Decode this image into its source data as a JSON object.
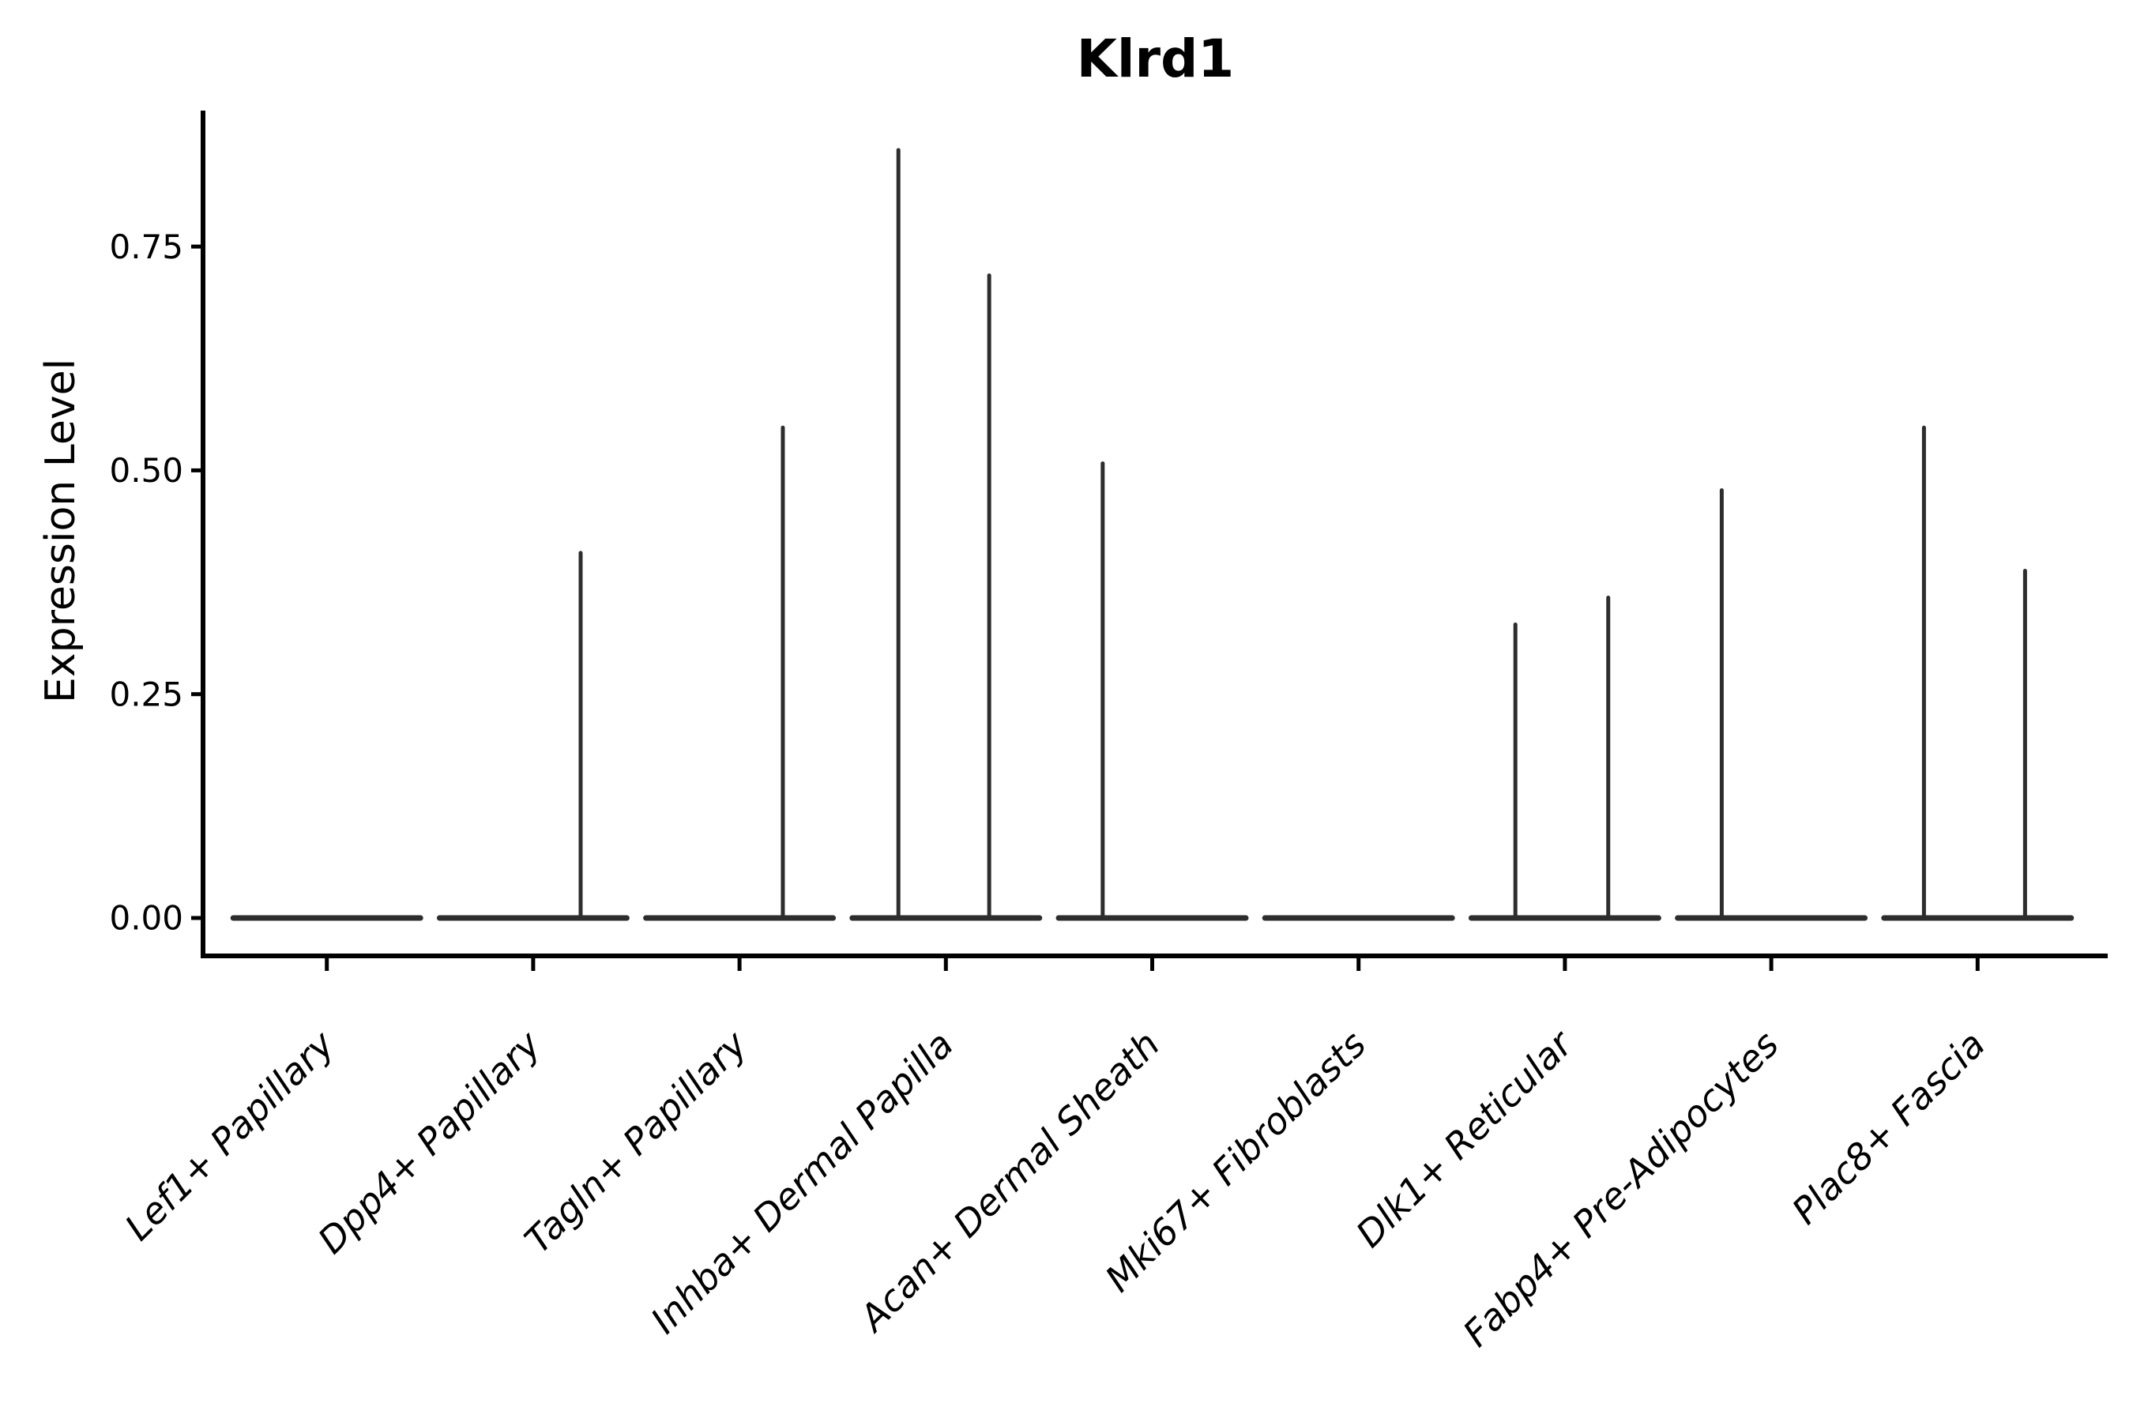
{
  "chart_data": {
    "type": "violin",
    "title": "Klrd1",
    "xlabel": "",
    "ylabel": "Expression Level",
    "yticks": [
      {
        "value": 0.0,
        "label": "0.00"
      },
      {
        "value": 0.25,
        "label": "0.25"
      },
      {
        "value": 0.5,
        "label": "0.50"
      },
      {
        "value": 0.75,
        "label": "0.75"
      }
    ],
    "ylim": [
      -0.042,
      0.9
    ],
    "grid": false,
    "legend": "none",
    "categories": [
      "Lef1+ Papillary",
      "Dpp4+ Papillary",
      "Tagln+ Papillary",
      "Inhba+ Dermal Papilla",
      "Acan+ Dermal Sheath",
      "Mki67+ Fibroblasts",
      "Dlk1+ Reticular",
      "Fabp4+ Pre-Adipocytes",
      "Plac8+ Fascia"
    ],
    "violins": [
      {
        "category": "Lef1+ Papillary",
        "base_value": 0,
        "base_width": 0.93,
        "spikes": []
      },
      {
        "category": "Dpp4+ Papillary",
        "base_value": 0,
        "base_width": 0.93,
        "spikes": [
          {
            "offset": 0.23,
            "max": 0.41
          }
        ]
      },
      {
        "category": "Tagln+ Papillary",
        "base_value": 0,
        "base_width": 0.93,
        "spikes": [
          {
            "offset": 0.21,
            "max": 0.55
          }
        ]
      },
      {
        "category": "Inhba+ Dermal Papilla",
        "base_value": 0,
        "base_width": 0.93,
        "spikes": [
          {
            "offset": -0.23,
            "max": 0.86
          },
          {
            "offset": 0.21,
            "max": 0.72
          }
        ]
      },
      {
        "category": "Acan+ Dermal Sheath",
        "base_value": 0,
        "base_width": 0.93,
        "spikes": [
          {
            "offset": -0.24,
            "max": 0.51
          }
        ]
      },
      {
        "category": "Mki67+ Fibroblasts",
        "base_value": 0,
        "base_width": 0.93,
        "spikes": []
      },
      {
        "category": "Dlk1+ Reticular",
        "base_value": 0,
        "base_width": 0.93,
        "spikes": [
          {
            "offset": -0.24,
            "max": 0.33
          },
          {
            "offset": 0.21,
            "max": 0.36
          }
        ]
      },
      {
        "category": "Fabp4+ Pre-Adipocytes",
        "base_value": 0,
        "base_width": 0.93,
        "spikes": [
          {
            "offset": -0.24,
            "max": 0.48
          }
        ]
      },
      {
        "category": "Plac8+ Fascia",
        "base_value": 0,
        "base_width": 0.93,
        "spikes": [
          {
            "offset": -0.26,
            "max": 0.55
          },
          {
            "offset": 0.23,
            "max": 0.39
          }
        ]
      }
    ],
    "colors": {
      "violin_line": "#2d2d2d",
      "axis": "#000000",
      "text": "#000000",
      "background": "#ffffff"
    }
  }
}
